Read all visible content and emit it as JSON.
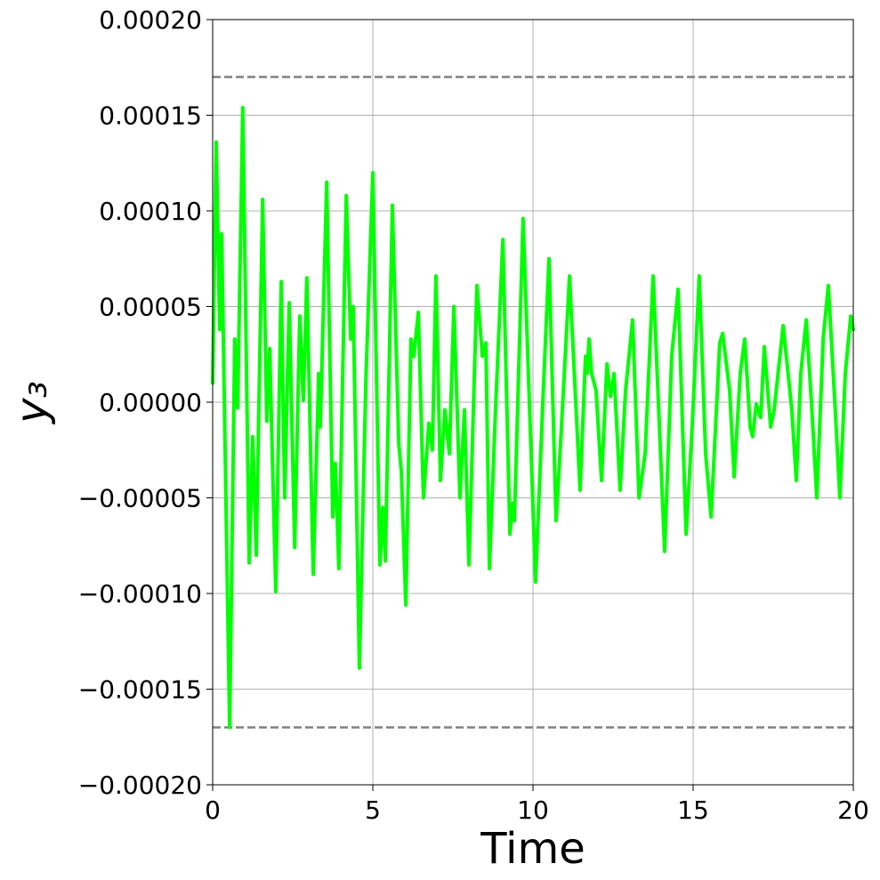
{
  "chart_data": {
    "type": "line",
    "xlabel": "Time",
    "ylabel": "y₃",
    "xlim": [
      0,
      20
    ],
    "ylim": [
      -0.0002,
      0.0002
    ],
    "xticks": [
      0,
      5,
      10,
      15,
      20
    ],
    "yticks": [
      {
        "value": -0.0002,
        "label": "−0.00020"
      },
      {
        "value": -0.00015,
        "label": "−0.00015"
      },
      {
        "value": -0.0001,
        "label": "−0.00010"
      },
      {
        "value": -5e-05,
        "label": "−0.00005"
      },
      {
        "value": 0,
        "label": "0.00000"
      },
      {
        "value": 5e-05,
        "label": "0.00005"
      },
      {
        "value": 0.0001,
        "label": "0.00010"
      },
      {
        "value": 0.00015,
        "label": "0.00015"
      },
      {
        "value": 0.0002,
        "label": "0.00020"
      }
    ],
    "grid": true,
    "reference_lines": {
      "color": "#808080",
      "dashed": true,
      "values": [
        0.00017,
        -0.00017
      ]
    },
    "series": [
      {
        "color": "#00ff00",
        "x": [
          0,
          0.11,
          0.22,
          0.28,
          0.53,
          0.69,
          0.78,
          0.94,
          1.14,
          1.25,
          1.36,
          1.56,
          1.69,
          1.78,
          1.97,
          2.14,
          2.25,
          2.39,
          2.56,
          2.72,
          2.83,
          2.94,
          3.14,
          3.31,
          3.36,
          3.56,
          3.75,
          3.83,
          3.94,
          4.17,
          4.31,
          4.39,
          4.58,
          4.78,
          5.0,
          5.22,
          5.31,
          5.39,
          5.61,
          5.81,
          5.89,
          6.03,
          6.19,
          6.28,
          6.42,
          6.58,
          6.75,
          6.86,
          6.97,
          7.11,
          7.25,
          7.39,
          7.53,
          7.72,
          7.86,
          8.0,
          8.25,
          8.42,
          8.53,
          8.64,
          8.83,
          9.06,
          9.28,
          9.36,
          9.42,
          9.69,
          10.08,
          10.31,
          10.5,
          10.72,
          10.86,
          11.14,
          11.47,
          11.64,
          11.69,
          11.75,
          11.83,
          11.97,
          12.14,
          12.31,
          12.42,
          12.53,
          12.72,
          12.89,
          13.11,
          13.31,
          13.5,
          13.75,
          14.11,
          14.33,
          14.53,
          14.78,
          14.97,
          15.19,
          15.39,
          15.56,
          15.83,
          15.92,
          16.14,
          16.28,
          16.47,
          16.61,
          16.78,
          16.86,
          16.97,
          17.11,
          17.22,
          17.42,
          17.53,
          17.81,
          18.08,
          18.22,
          18.36,
          18.53,
          18.69,
          18.86,
          19.06,
          19.22,
          19.42,
          19.58,
          19.75,
          19.92,
          20.0
        ],
        "values": [
          1e-05,
          0.000136,
          3.8e-05,
          8.8e-05,
          -0.00017,
          3.3e-05,
          -3e-06,
          0.000154,
          -8.4e-05,
          -1.8e-05,
          -8e-05,
          0.000106,
          -1e-05,
          2.8e-05,
          -9.9e-05,
          6.3e-05,
          -5e-05,
          5.2e-05,
          -7.6e-05,
          4.5e-05,
          1e-06,
          6.5e-05,
          -9e-05,
          1.5e-05,
          -1.3e-05,
          0.000115,
          -6e-05,
          -3.2e-05,
          -8.7e-05,
          0.000108,
          3.3e-05,
          5e-05,
          -0.000139,
          1e-05,
          0.00012,
          -8.5e-05,
          -5.5e-05,
          -8.3e-05,
          0.000103,
          -2.2e-05,
          -3.6e-05,
          -0.000106,
          3.3e-05,
          2.4e-05,
          4.7e-05,
          -5e-05,
          -1.1e-05,
          -2.5e-05,
          6.6e-05,
          -4.1e-05,
          -4e-06,
          -2.7e-05,
          5e-05,
          -5e-05,
          -4e-06,
          -8.5e-05,
          6.1e-05,
          2.4e-05,
          3.1e-05,
          -8.7e-05,
          -4e-06,
          8.5e-05,
          -6.9e-05,
          -5.3e-05,
          -6.2e-05,
          9.6e-05,
          -9.4e-05,
          1e-06,
          7.5e-05,
          -6.2e-05,
          -2.2e-05,
          6.6e-05,
          -4.6e-05,
          2.4e-05,
          1.5e-05,
          3.3e-05,
          1.5e-05,
          6e-06,
          -4.1e-05,
          2e-05,
          3e-06,
          1.5e-05,
          -4.6e-05,
          6e-06,
          4.3e-05,
          -5e-05,
          -2.7e-05,
          6.6e-05,
          -7.8e-05,
          2.4e-05,
          5.9e-05,
          -6.9e-05,
          -1.3e-05,
          6.6e-05,
          -2.7e-05,
          -6e-05,
          3.1e-05,
          3.6e-05,
          6e-06,
          -3.9e-05,
          1.5e-05,
          3.3e-05,
          -1.3e-05,
          -1.8e-05,
          -1e-06,
          -8e-06,
          2.9e-05,
          -1.3e-05,
          -4e-06,
          4e-05,
          -4e-06,
          -4.1e-05,
          1.5e-05,
          4.3e-05,
          1e-06,
          -5e-05,
          3.3e-05,
          6.1e-05,
          1e-06,
          -5e-05,
          1.5e-05,
          4.5e-05,
          3.8e-05
        ]
      }
    ]
  }
}
